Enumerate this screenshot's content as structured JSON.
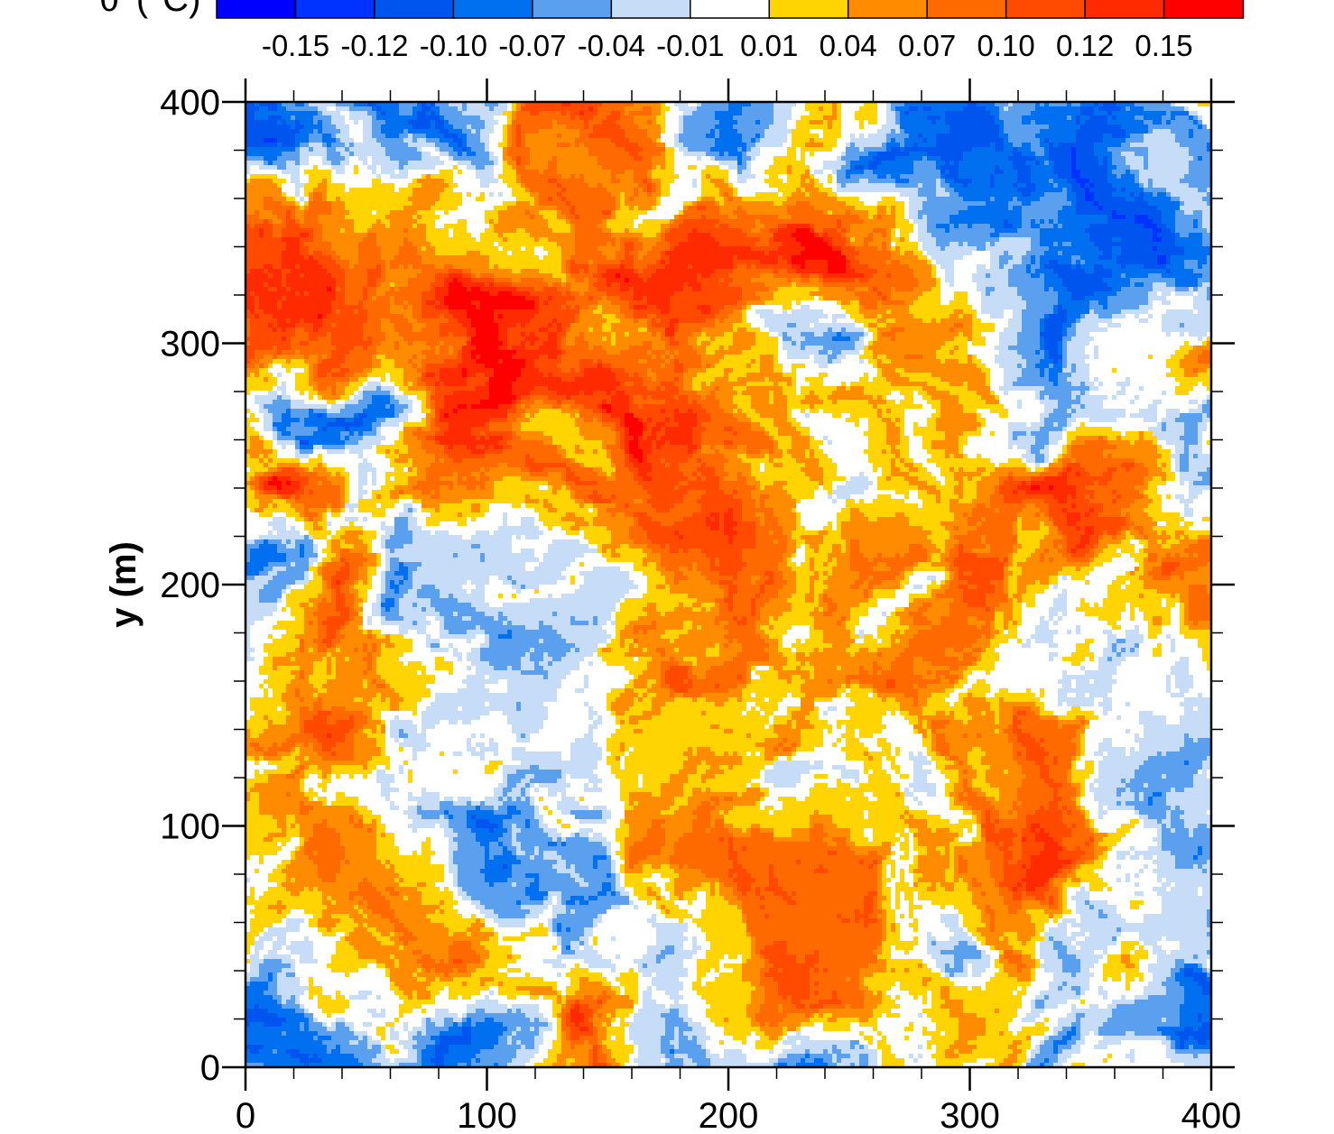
{
  "chart_data": {
    "type": "heatmap",
    "title": "",
    "xlabel": "",
    "ylabel": "y (m)",
    "colorbar_label": "θ′ (°C)",
    "xlim": [
      0,
      400
    ],
    "ylim": [
      0,
      400
    ],
    "x_ticks": [
      "0",
      "100",
      "200",
      "300",
      "400"
    ],
    "y_ticks": [
      "0",
      "100",
      "200",
      "300",
      "400"
    ],
    "colorbar": {
      "placement": "top",
      "range": [
        -0.16,
        0.16
      ],
      "tick_labels": [
        "-0.15",
        "-0.12",
        "-0.10",
        "-0.07",
        "-0.04",
        "-0.01",
        "0.01",
        "0.04",
        "0.07",
        "0.10",
        "0.12",
        "0.15"
      ],
      "colors": [
        "#0000ff",
        "#0033ff",
        "#0055ee",
        "#0070f0",
        "#5aa0ef",
        "#c6dcf7",
        "#ffffff",
        "#ffd400",
        "#ff8c00",
        "#ff6a00",
        "#ff4a00",
        "#ff2a00",
        "#ff0000"
      ]
    },
    "field_description_values": {
      "min": -0.16,
      "max": 0.16,
      "pattern": "turbulent"
    }
  }
}
